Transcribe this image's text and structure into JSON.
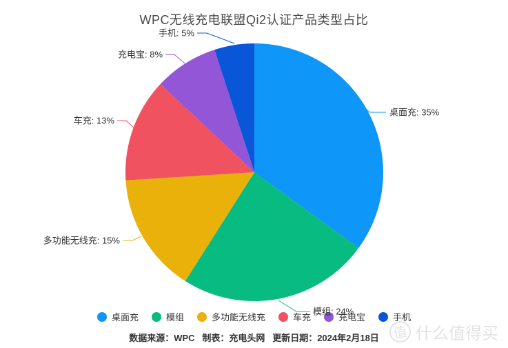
{
  "chart_data": {
    "type": "pie",
    "title": "WPC无线充电联盟Qi2认证产品类型占比",
    "label_format": "{label}: {value}%",
    "legend_position": "bottom",
    "start_angle_deg": 0,
    "slices": [
      {
        "label": "桌面充",
        "value": 35,
        "color": "#0E96F8"
      },
      {
        "label": "模组",
        "value": 24,
        "color": "#08BB81"
      },
      {
        "label": "多功能无线充",
        "value": 15,
        "color": "#EAB10A"
      },
      {
        "label": "车充",
        "value": 13,
        "color": "#F0525F"
      },
      {
        "label": "充电宝",
        "value": 8,
        "color": "#9256D7"
      },
      {
        "label": "手机",
        "value": 5,
        "color": "#0A56D8"
      }
    ]
  },
  "footer": {
    "text": "数据来源：WPC   制表：充电头网   更新日期：2024年2月18日"
  },
  "watermark": {
    "logo_char": "值",
    "text": "什么值得买"
  }
}
